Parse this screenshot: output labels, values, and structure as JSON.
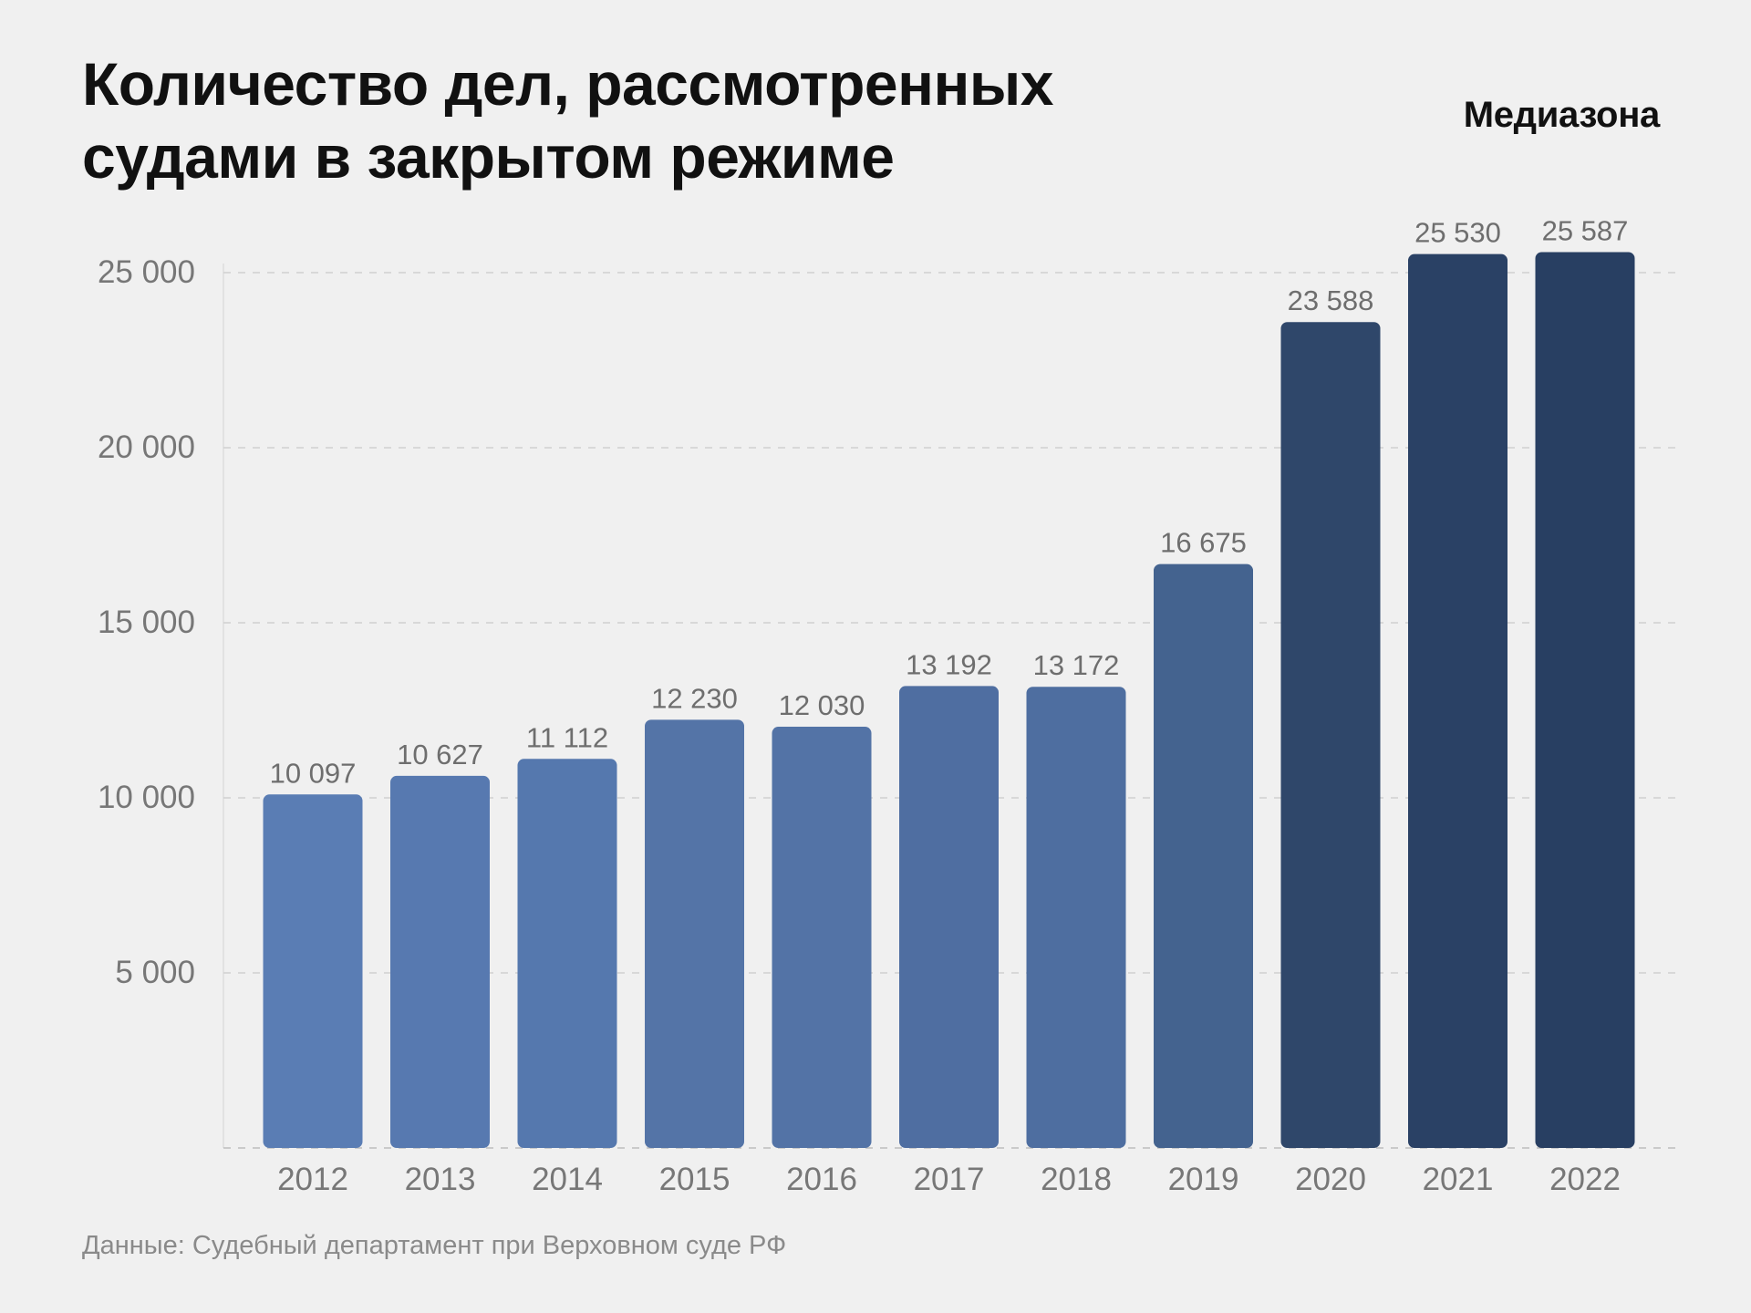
{
  "header": {
    "title_line1": "Количество дел, рассмотренных",
    "title_line2": "судами в закрытом режиме",
    "brand": "Медиазона"
  },
  "footer": {
    "source": "Данные: Судебный департамент при Верховном суде РФ"
  },
  "chart_data": {
    "type": "bar",
    "title": "Количество дел, рассмотренных судами в закрытом режиме",
    "xlabel": "",
    "ylabel": "",
    "categories": [
      "2012",
      "2013",
      "2014",
      "2015",
      "2016",
      "2017",
      "2018",
      "2019",
      "2020",
      "2021",
      "2022"
    ],
    "values": [
      10097,
      10627,
      11112,
      12230,
      12030,
      13192,
      13172,
      16675,
      23588,
      25530,
      25587
    ],
    "value_labels": [
      "10 097",
      "10 627",
      "11 112",
      "12 230",
      "12 030",
      "13 192",
      "13 172",
      "16 675",
      "23 588",
      "25 530",
      "25 587"
    ],
    "ylim": [
      0,
      25000
    ],
    "yticks": [
      5000,
      10000,
      15000,
      20000,
      25000
    ],
    "ytick_labels": [
      "5 000",
      "10 000",
      "15 000",
      "20 000",
      "25 000"
    ],
    "grid": true,
    "grid_style": "dashed",
    "legend": "none",
    "bar_colors": [
      "#5a7db4",
      "#5779b0",
      "#5578ae",
      "#5474a7",
      "#5373a6",
      "#4f6ea1",
      "#4e6ea0",
      "#44638f",
      "#2f476a",
      "#2a4165",
      "#283f62"
    ]
  }
}
